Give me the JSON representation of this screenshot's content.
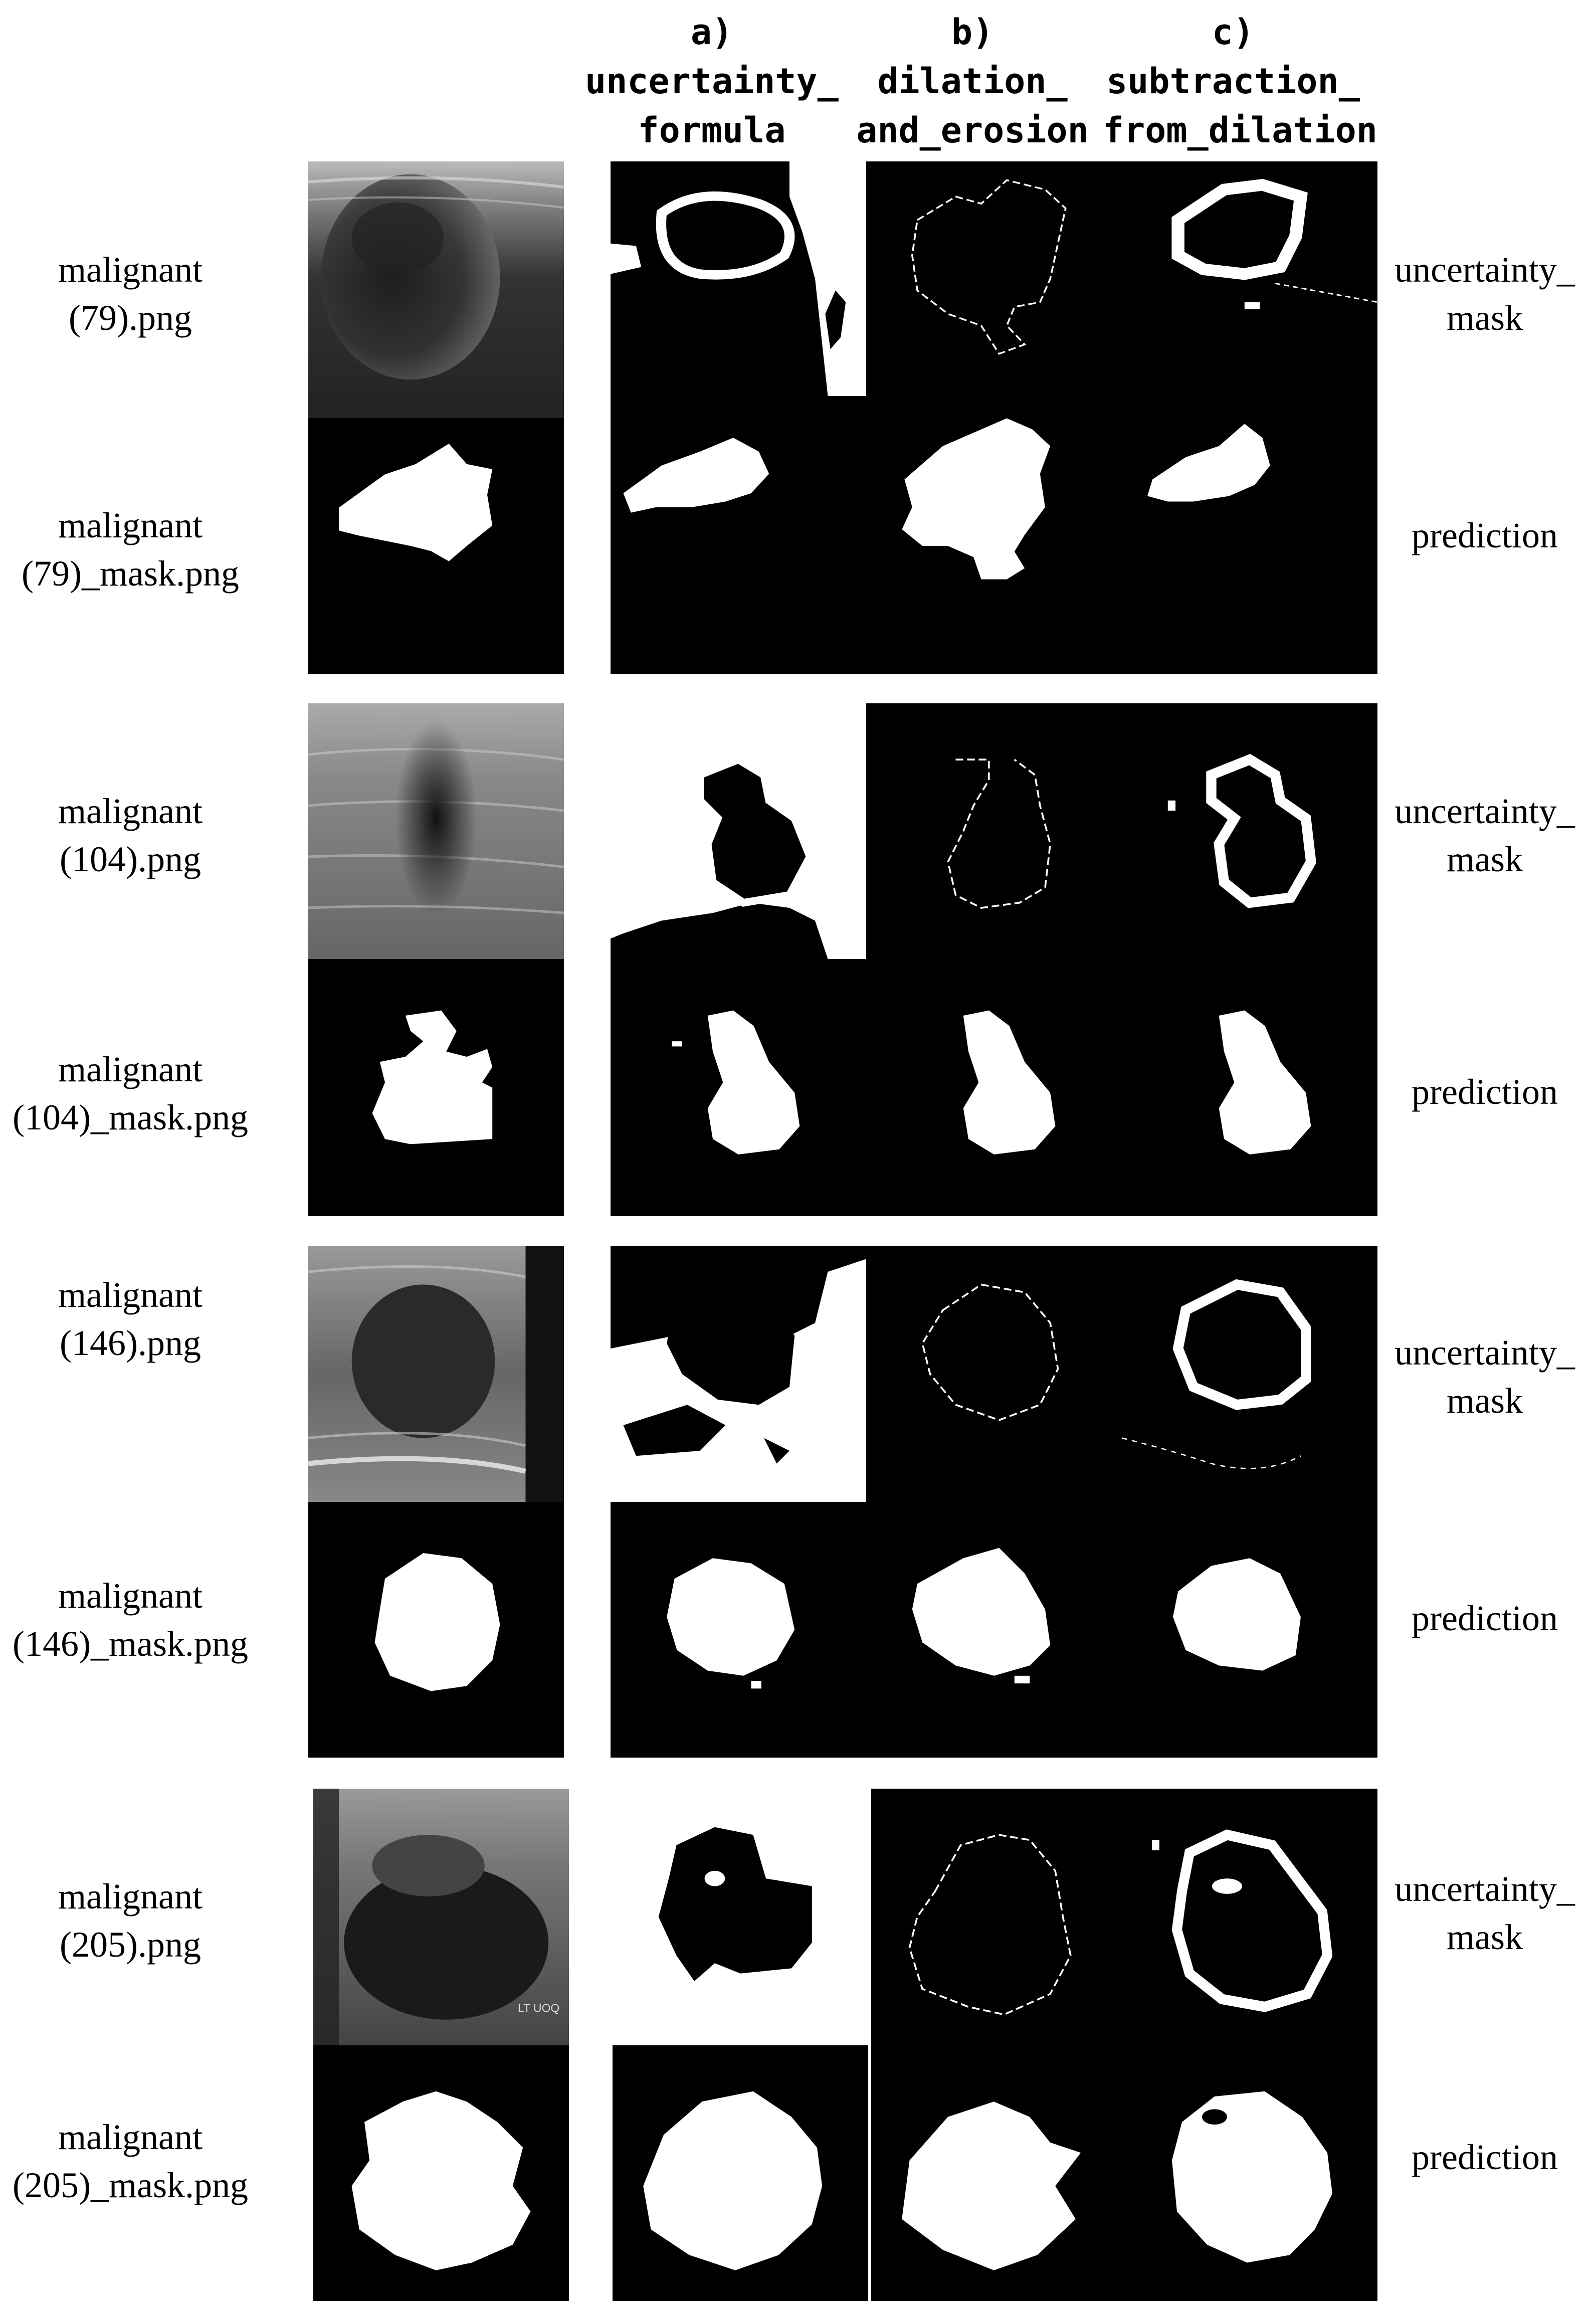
{
  "columns": [
    {
      "letter": "a)",
      "line1": "uncertainty_",
      "line2": "formula"
    },
    {
      "letter": "b)",
      "line1": "dilation_",
      "line2": "and_erosion"
    },
    {
      "letter": "c)",
      "line1": "subtraction_",
      "line2": "from_dilation"
    }
  ],
  "groups": [
    {
      "image": {
        "line1": "malignant",
        "line2": "(79).png"
      },
      "mask": {
        "line1": "malignant",
        "line2": "(79)_mask.png"
      },
      "row1_label": {
        "line1": "uncertainty_",
        "line2": "mask"
      },
      "row2_label": "prediction"
    },
    {
      "image": {
        "line1": "malignant",
        "line2": "(104).png"
      },
      "mask": {
        "line1": "malignant",
        "line2": "(104)_mask.png"
      },
      "row1_label": {
        "line1": "uncertainty_",
        "line2": "mask"
      },
      "row2_label": "prediction"
    },
    {
      "image": {
        "line1": "malignant",
        "line2": "(146).png"
      },
      "mask": {
        "line1": "malignant",
        "line2": "(146)_mask.png"
      },
      "row1_label": {
        "line1": "uncertainty_",
        "line2": "mask"
      },
      "row2_label": "prediction"
    },
    {
      "image": {
        "line1": "malignant",
        "line2": "(205).png"
      },
      "mask": {
        "line1": "malignant",
        "line2": "(205)_mask.png"
      },
      "row1_label": {
        "line1": "uncertainty_",
        "line2": "mask"
      },
      "row2_label": "prediction"
    }
  ],
  "embedded_image_text": "LT UOQ",
  "colors": {
    "background": "#ffffff",
    "panel_black": "#000000",
    "mask_white": "#ffffff"
  }
}
